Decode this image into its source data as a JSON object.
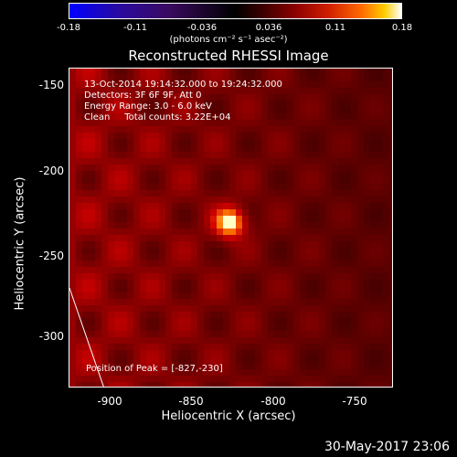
{
  "colorbar": {
    "ticks": [
      "-0.18",
      "-0.11",
      "-0.036",
      "0.036",
      "0.11",
      "0.18"
    ],
    "units": "(photons cm⁻² s⁻¹ asec⁻²)"
  },
  "title": "Reconstructed RHESSI Image",
  "info": {
    "time_range": "13-Oct-2014 19:14:32.000 to 19:24:32.000",
    "detectors": "Detectors: 3F 6F 9F, Att 0",
    "energy": "Energy Range: 3.0 - 6.0 keV",
    "method": "Clean     Total counts: 3.22E+04",
    "peak": "Position of Peak = [-827,-230]"
  },
  "axes": {
    "xlabel": "Heliocentric X (arcsec)",
    "ylabel": "Heliocentric Y (arcsec)",
    "xticks": [
      "-900",
      "-850",
      "-800",
      "-750"
    ],
    "yticks": [
      "-150",
      "-200",
      "-250",
      "-300"
    ]
  },
  "footer": "30-May-2017 23:06"
}
